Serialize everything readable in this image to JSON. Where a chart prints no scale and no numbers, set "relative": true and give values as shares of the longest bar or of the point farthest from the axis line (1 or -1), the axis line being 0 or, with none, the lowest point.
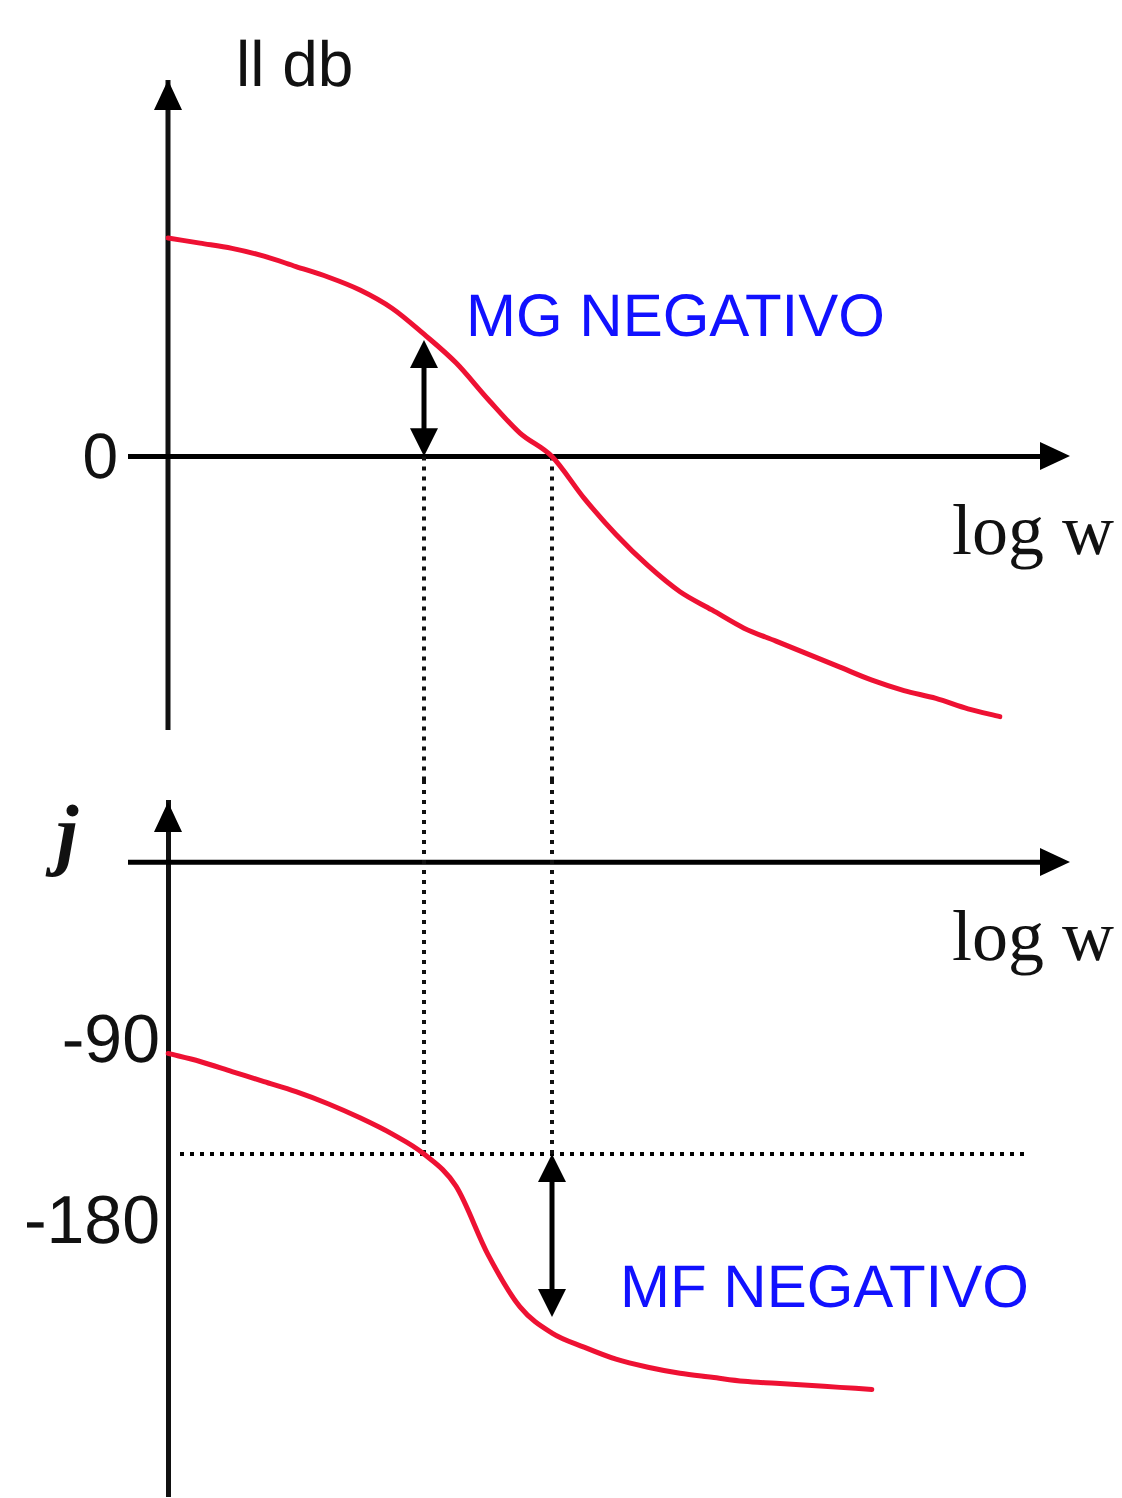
{
  "chart_data": [
    {
      "type": "line",
      "ylabel": "ll db",
      "xlabel": "log w",
      "annotations": [
        "MG NEGATIVO"
      ],
      "relative": true,
      "marker": "none",
      "categories": [
        null,
        null,
        null,
        null,
        null,
        null,
        null,
        null,
        null,
        null,
        null,
        null,
        null,
        null,
        null,
        null,
        null,
        null,
        null,
        null,
        null,
        null,
        null,
        null,
        null,
        null,
        null
      ],
      "series": [
        {
          "color": "#ee1133",
          "values": [
            0.84,
            0.82,
            0.8,
            0.77,
            0.73,
            0.69,
            0.64,
            0.57,
            0.47,
            0.36,
            0.22,
            0.09,
            0,
            -0.16,
            -0.3,
            -0.42,
            -0.52,
            -0.59,
            -0.66,
            -0.71,
            -0.76,
            -0.81,
            -0.86,
            -0.9,
            -0.93,
            -0.97,
            -1
          ]
        }
      ],
      "ref_lines": [
        {
          "axis": "y",
          "value": 0,
          "label": "0",
          "color": "#000000"
        }
      ]
    },
    {
      "type": "line",
      "ylabel": "j",
      "xlabel": "log w",
      "annotations": [
        "MF NEGATIVO"
      ],
      "ylim": [
        -315,
        30
      ],
      "yticks": [
        -90,
        -180
      ],
      "tick_labels": "y",
      "marker": "none",
      "categories": [
        null,
        null,
        null,
        null,
        null,
        null,
        null,
        null,
        null,
        null,
        null,
        null,
        null,
        null,
        null,
        null,
        null,
        null,
        null,
        null,
        null,
        null,
        null
      ],
      "series": [
        {
          "color": "#ee1133",
          "values": [
            -95,
            -99,
            -104,
            -109,
            -114,
            -120,
            -127,
            -135,
            -145,
            -161,
            -195,
            -221,
            -234,
            -241,
            -247,
            -251,
            -254,
            -256,
            -258,
            -259,
            -260,
            -261,
            -262
          ]
        }
      ],
      "ref_lines": [
        {
          "axis": "y",
          "value": 0,
          "color": "#000000"
        },
        {
          "axis": "y",
          "value": -145,
          "color": "#000000",
          "line_style": "dotted"
        }
      ]
    }
  ]
}
